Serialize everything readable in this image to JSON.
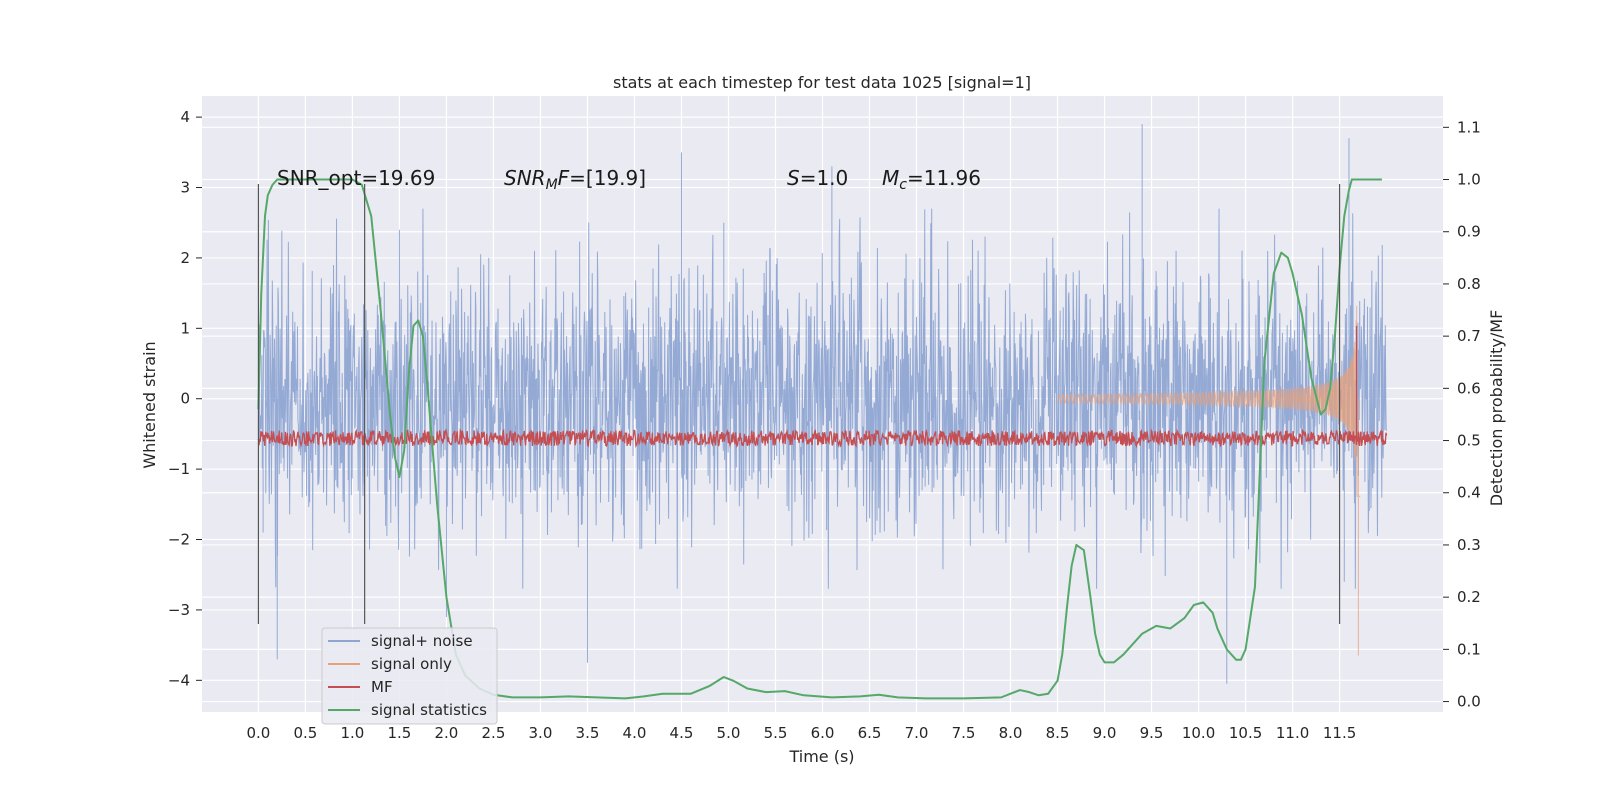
{
  "chart_data": {
    "type": "line",
    "title": "stats at each timestep for test data 1025 [signal=1]",
    "xlabel": "Time (s)",
    "ylabel_left": "Whitened strain",
    "ylabel_right": "Detection probability/MF",
    "xlim": [
      -0.6,
      12.6
    ],
    "ylim_left": [
      -4.45,
      4.3
    ],
    "ylim_right": [
      -0.02,
      1.16
    ],
    "x_ticks": [
      0.0,
      0.5,
      1.0,
      1.5,
      2.0,
      2.5,
      3.0,
      3.5,
      4.0,
      4.5,
      5.0,
      5.5,
      6.0,
      6.5,
      7.0,
      7.5,
      8.0,
      8.5,
      9.0,
      9.5,
      10.0,
      10.5,
      11.0,
      11.5
    ],
    "x_tick_labels": [
      "0.0",
      "0.5",
      "1.0",
      "1.5",
      "2.0",
      "2.5",
      "3.0",
      "3.5",
      "4.0",
      "4.5",
      "5.0",
      "5.5",
      "6.0",
      "6.5",
      "7.0",
      "7.5",
      "8.0",
      "8.5",
      "9.0",
      "9.5",
      "10.0",
      "10.5",
      "11.0",
      "11.5"
    ],
    "y_left_ticks": [
      -4,
      -3,
      -2,
      -1,
      0,
      1,
      2,
      3,
      4
    ],
    "y_left_tick_labels": [
      "−4",
      "−3",
      "−2",
      "−1",
      "0",
      "1",
      "2",
      "3",
      "4"
    ],
    "y_right_ticks": [
      0.0,
      0.1,
      0.2,
      0.3,
      0.4,
      0.5,
      0.6,
      0.7,
      0.8,
      0.9,
      1.0,
      1.1
    ],
    "y_right_tick_labels": [
      "0.0",
      "0.1",
      "0.2",
      "0.3",
      "0.4",
      "0.5",
      "0.6",
      "0.7",
      "0.8",
      "0.9",
      "1.0",
      "1.1"
    ],
    "grid": true,
    "legend_position": "lower-left",
    "annotations": {
      "snr_opt": "SNR_opt=19.69",
      "snr_mf_name": "SNR",
      "snr_mf_sub": "M",
      "snr_mf_suffix": "F",
      "snr_mf_value": "=[19.9]",
      "s_name": "S",
      "s_value": "=1.0",
      "mc_name": "M",
      "mc_sub": "c",
      "mc_value": "=11.96"
    },
    "vertical_markers": [
      {
        "x": 0.0,
        "y_range": [
          -3.2,
          3.05
        ]
      },
      {
        "x": 1.13,
        "y_range": [
          -3.2,
          3.05
        ]
      },
      {
        "x": 11.5,
        "y_range": [
          -3.2,
          3.05
        ]
      }
    ],
    "series": [
      {
        "name": "signal+ noise",
        "axis": "left",
        "color": "#8fa6d3",
        "style": "noise",
        "x_range": [
          0.0,
          12.0
        ],
        "envelope_typical": 1.85,
        "spikes": [
          [
            0.05,
            -1.9
          ],
          [
            0.2,
            -3.7
          ],
          [
            1.5,
            2.4
          ],
          [
            2.45,
            2.0
          ],
          [
            3.5,
            -3.75
          ],
          [
            4.5,
            3.5
          ],
          [
            4.95,
            2.5
          ],
          [
            6.1,
            3.3
          ],
          [
            9.4,
            3.9
          ],
          [
            10.3,
            -4.05
          ],
          [
            11.6,
            3.7
          ],
          [
            11.55,
            -2.6
          ],
          [
            2.0,
            -3.1
          ]
        ]
      },
      {
        "name": "signal only",
        "axis": "left",
        "color": "#e8a07a",
        "style": "chirp",
        "x_range": [
          8.5,
          11.72
        ],
        "merger_time": 11.7,
        "peak_amplitude": 2.5,
        "min_at_merger": -3.65
      },
      {
        "name": "MF",
        "axis": "right",
        "color": "#c44e52",
        "style": "noise-small",
        "x_range": [
          0.0,
          12.0
        ],
        "baseline": 0.5,
        "spread": 0.03,
        "peak": {
          "x": 11.68,
          "y": 0.72
        }
      },
      {
        "name": "signal statistics",
        "axis": "right",
        "color": "#55a868",
        "x": [
          0.0,
          0.03,
          0.07,
          0.1,
          0.15,
          0.2,
          0.3,
          0.5,
          0.8,
          1.0,
          1.1,
          1.2,
          1.3,
          1.4,
          1.45,
          1.5,
          1.55,
          1.6,
          1.65,
          1.7,
          1.75,
          1.8,
          1.9,
          2.0,
          2.1,
          2.2,
          2.35,
          2.5,
          2.7,
          3.0,
          3.3,
          3.6,
          3.9,
          4.1,
          4.3,
          4.6,
          4.8,
          4.95,
          5.05,
          5.2,
          5.4,
          5.6,
          5.8,
          6.1,
          6.4,
          6.6,
          6.8,
          7.1,
          7.5,
          7.9,
          8.0,
          8.1,
          8.2,
          8.3,
          8.4,
          8.5,
          8.55,
          8.6,
          8.65,
          8.7,
          8.78,
          8.85,
          8.9,
          8.95,
          9.0,
          9.1,
          9.2,
          9.4,
          9.55,
          9.7,
          9.85,
          9.95,
          10.05,
          10.15,
          10.2,
          10.3,
          10.4,
          10.45,
          10.5,
          10.6,
          10.7,
          10.8,
          10.88,
          10.95,
          11.0,
          11.1,
          11.2,
          11.3,
          11.35,
          11.4,
          11.45,
          11.5,
          11.55,
          11.6,
          11.63,
          11.7,
          11.8,
          11.9,
          11.95
        ],
        "values": [
          0.56,
          0.78,
          0.93,
          0.97,
          0.99,
          1.0,
          1.0,
          1.0,
          1.0,
          1.0,
          0.99,
          0.93,
          0.75,
          0.55,
          0.47,
          0.43,
          0.48,
          0.63,
          0.72,
          0.73,
          0.7,
          0.6,
          0.38,
          0.2,
          0.09,
          0.05,
          0.025,
          0.013,
          0.008,
          0.008,
          0.01,
          0.008,
          0.006,
          0.01,
          0.015,
          0.015,
          0.03,
          0.047,
          0.04,
          0.025,
          0.018,
          0.02,
          0.012,
          0.008,
          0.01,
          0.013,
          0.008,
          0.006,
          0.006,
          0.008,
          0.015,
          0.022,
          0.018,
          0.012,
          0.015,
          0.04,
          0.09,
          0.18,
          0.26,
          0.3,
          0.29,
          0.2,
          0.13,
          0.09,
          0.075,
          0.075,
          0.09,
          0.13,
          0.145,
          0.14,
          0.16,
          0.185,
          0.19,
          0.17,
          0.14,
          0.1,
          0.08,
          0.08,
          0.1,
          0.22,
          0.65,
          0.82,
          0.86,
          0.85,
          0.82,
          0.74,
          0.62,
          0.55,
          0.56,
          0.6,
          0.7,
          0.83,
          0.93,
          0.98,
          1.0,
          1.0,
          1.0,
          1.0,
          1.0
        ]
      }
    ]
  }
}
